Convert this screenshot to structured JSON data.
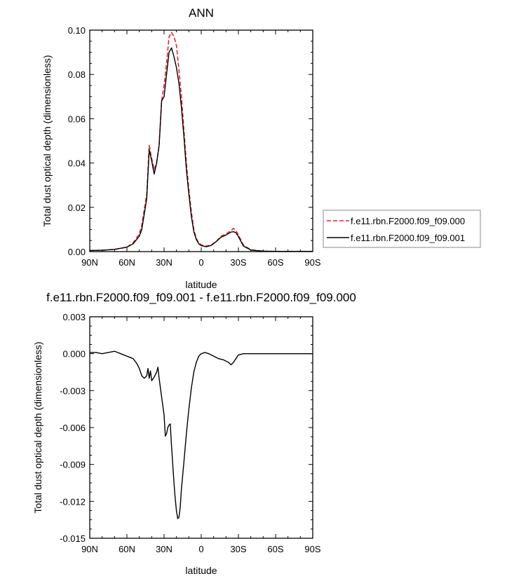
{
  "chart_data": [
    {
      "type": "line",
      "title": "ANN",
      "xlabel": "latitude",
      "ylabel": "Total dust optical depth (dimensionless)",
      "xlim": [
        90,
        -90
      ],
      "ylim": [
        0,
        0.1
      ],
      "x_ticks": [
        {
          "value": 90,
          "label": "90N"
        },
        {
          "value": 60,
          "label": "60N"
        },
        {
          "value": 30,
          "label": "30N"
        },
        {
          "value": 0,
          "label": "0"
        },
        {
          "value": -30,
          "label": "30S"
        },
        {
          "value": -60,
          "label": "60S"
        },
        {
          "value": -90,
          "label": "90S"
        }
      ],
      "y_ticks": [
        {
          "value": 0,
          "label": "0.00"
        },
        {
          "value": 0.02,
          "label": "0.02"
        },
        {
          "value": 0.04,
          "label": "0.04"
        },
        {
          "value": 0.06,
          "label": "0.06"
        },
        {
          "value": 0.08,
          "label": "0.08"
        },
        {
          "value": 0.1,
          "label": "0.10"
        }
      ],
      "legend_position": "right",
      "series": [
        {
          "name": "f.e11.rbn.F2000.f09_f09.000",
          "color": "#e8232b",
          "dash": "dashed",
          "points": [
            [
              90,
              0.0005
            ],
            [
              80,
              0.0006
            ],
            [
              70,
              0.001
            ],
            [
              60,
              0.002
            ],
            [
              55,
              0.004
            ],
            [
              50,
              0.008
            ],
            [
              48,
              0.012
            ],
            [
              46,
              0.019
            ],
            [
              44,
              0.026
            ],
            [
              42,
              0.048
            ],
            [
              40,
              0.042
            ],
            [
              38,
              0.037
            ],
            [
              36,
              0.04
            ],
            [
              34,
              0.048
            ],
            [
              32,
              0.068
            ],
            [
              30,
              0.075
            ],
            [
              28,
              0.085
            ],
            [
              26,
              0.097
            ],
            [
              24,
              0.099
            ],
            [
              22,
              0.097
            ],
            [
              20,
              0.093
            ],
            [
              18,
              0.082
            ],
            [
              16,
              0.07
            ],
            [
              14,
              0.055
            ],
            [
              12,
              0.04
            ],
            [
              10,
              0.028
            ],
            [
              8,
              0.018
            ],
            [
              6,
              0.01
            ],
            [
              4,
              0.006
            ],
            [
              2,
              0.004
            ],
            [
              0,
              0.003
            ],
            [
              -4,
              0.0025
            ],
            [
              -8,
              0.003
            ],
            [
              -12,
              0.0045
            ],
            [
              -16,
              0.007
            ],
            [
              -20,
              0.008
            ],
            [
              -24,
              0.0095
            ],
            [
              -26,
              0.0105
            ],
            [
              -28,
              0.0095
            ],
            [
              -30,
              0.0075
            ],
            [
              -34,
              0.003
            ],
            [
              -40,
              0.0008
            ],
            [
              -50,
              0.0002
            ],
            [
              -60,
              0.0001
            ],
            [
              -70,
              0.0001
            ],
            [
              -80,
              0.0001
            ],
            [
              -90,
              0.0001
            ]
          ]
        },
        {
          "name": "f.e11.rbn.F2000.f09_f09.001",
          "color": "#000000",
          "dash": "solid",
          "points": [
            [
              90,
              0.0005
            ],
            [
              80,
              0.0006
            ],
            [
              70,
              0.001
            ],
            [
              60,
              0.002
            ],
            [
              55,
              0.0035
            ],
            [
              50,
              0.007
            ],
            [
              48,
              0.01
            ],
            [
              46,
              0.017
            ],
            [
              44,
              0.024
            ],
            [
              42,
              0.046
            ],
            [
              40,
              0.041
            ],
            [
              38,
              0.035
            ],
            [
              36,
              0.04
            ],
            [
              34,
              0.048
            ],
            [
              32,
              0.068
            ],
            [
              30,
              0.07
            ],
            [
              28,
              0.08
            ],
            [
              26,
              0.09
            ],
            [
              24,
              0.092
            ],
            [
              22,
              0.088
            ],
            [
              20,
              0.083
            ],
            [
              18,
              0.076
            ],
            [
              16,
              0.065
            ],
            [
              14,
              0.052
            ],
            [
              12,
              0.037
            ],
            [
              10,
              0.026
            ],
            [
              8,
              0.016
            ],
            [
              6,
              0.009
            ],
            [
              4,
              0.0055
            ],
            [
              2,
              0.0035
            ],
            [
              0,
              0.0027
            ],
            [
              -4,
              0.0022
            ],
            [
              -8,
              0.0028
            ],
            [
              -12,
              0.0045
            ],
            [
              -16,
              0.0065
            ],
            [
              -20,
              0.0075
            ],
            [
              -24,
              0.0088
            ],
            [
              -26,
              0.009
            ],
            [
              -28,
              0.0085
            ],
            [
              -30,
              0.0068
            ],
            [
              -34,
              0.0025
            ],
            [
              -40,
              0.0007
            ],
            [
              -50,
              0.0002
            ],
            [
              -60,
              0.0001
            ],
            [
              -70,
              0.0001
            ],
            [
              -80,
              0.0001
            ],
            [
              -90,
              0.0001
            ]
          ]
        }
      ]
    },
    {
      "type": "line",
      "title": "f.e11.rbn.F2000.f09_f09.001 - f.e11.rbn.F2000.f09_f09.000",
      "xlabel": "latitude",
      "ylabel": "Total dust optical depth (dimensionless)",
      "xlim": [
        90,
        -90
      ],
      "ylim": [
        -0.015,
        0.003
      ],
      "x_ticks": [
        {
          "value": 90,
          "label": "90N"
        },
        {
          "value": 60,
          "label": "60N"
        },
        {
          "value": 30,
          "label": "30N"
        },
        {
          "value": 0,
          "label": "0"
        },
        {
          "value": -30,
          "label": "30S"
        },
        {
          "value": -60,
          "label": "60S"
        },
        {
          "value": -90,
          "label": "90S"
        }
      ],
      "y_ticks": [
        {
          "value": -0.015,
          "label": "-0.015"
        },
        {
          "value": -0.012,
          "label": "-0.012"
        },
        {
          "value": -0.009,
          "label": "-0.009"
        },
        {
          "value": -0.006,
          "label": "-0.006"
        },
        {
          "value": -0.003,
          "label": "-0.003"
        },
        {
          "value": 0,
          "label": "0.000"
        },
        {
          "value": 0.003,
          "label": "0.003"
        }
      ],
      "series": [
        {
          "color": "#000000",
          "dash": "solid",
          "points": [
            [
              90,
              0.0001
            ],
            [
              85,
              0.0001
            ],
            [
              80,
              0.0
            ],
            [
              75,
              0.0001
            ],
            [
              70,
              0.0002
            ],
            [
              65,
              0.0
            ],
            [
              60,
              -0.0002
            ],
            [
              55,
              -0.0004
            ],
            [
              52,
              -0.0008
            ],
            [
              50,
              -0.0012
            ],
            [
              48,
              -0.0018
            ],
            [
              46,
              -0.002
            ],
            [
              44,
              -0.0018
            ],
            [
              43,
              -0.0012
            ],
            [
              42,
              -0.002
            ],
            [
              41,
              -0.0014
            ],
            [
              40,
              -0.0022
            ],
            [
              38,
              -0.0019
            ],
            [
              36,
              -0.0015
            ],
            [
              35,
              -0.0011
            ],
            [
              34,
              -0.002
            ],
            [
              32,
              -0.0035
            ],
            [
              30,
              -0.005
            ],
            [
              29,
              -0.0067
            ],
            [
              28,
              -0.0065
            ],
            [
              27,
              -0.006
            ],
            [
              26,
              -0.0058
            ],
            [
              25,
              -0.0057
            ],
            [
              24,
              -0.0075
            ],
            [
              23,
              -0.009
            ],
            [
              22,
              -0.0105
            ],
            [
              21,
              -0.0118
            ],
            [
              20,
              -0.0128
            ],
            [
              19,
              -0.0134
            ],
            [
              18,
              -0.0133
            ],
            [
              17,
              -0.0125
            ],
            [
              16,
              -0.011
            ],
            [
              14,
              -0.0088
            ],
            [
              12,
              -0.0065
            ],
            [
              10,
              -0.0045
            ],
            [
              8,
              -0.0028
            ],
            [
              6,
              -0.0015
            ],
            [
              4,
              -0.0007
            ],
            [
              2,
              -0.0002
            ],
            [
              0,
              0.0
            ],
            [
              -3,
              0.0001
            ],
            [
              -6,
              0.0
            ],
            [
              -10,
              -0.0002
            ],
            [
              -14,
              -0.0004
            ],
            [
              -18,
              -0.0005
            ],
            [
              -22,
              -0.0007
            ],
            [
              -24,
              -0.0009
            ],
            [
              -26,
              -0.0007
            ],
            [
              -28,
              -0.0004
            ],
            [
              -30,
              -0.0001
            ],
            [
              -34,
              0.0
            ],
            [
              -40,
              0.0
            ],
            [
              -50,
              0.0
            ],
            [
              -60,
              0.0
            ],
            [
              -70,
              0.0
            ],
            [
              -80,
              0.0
            ],
            [
              -90,
              0.0
            ]
          ]
        }
      ]
    }
  ]
}
